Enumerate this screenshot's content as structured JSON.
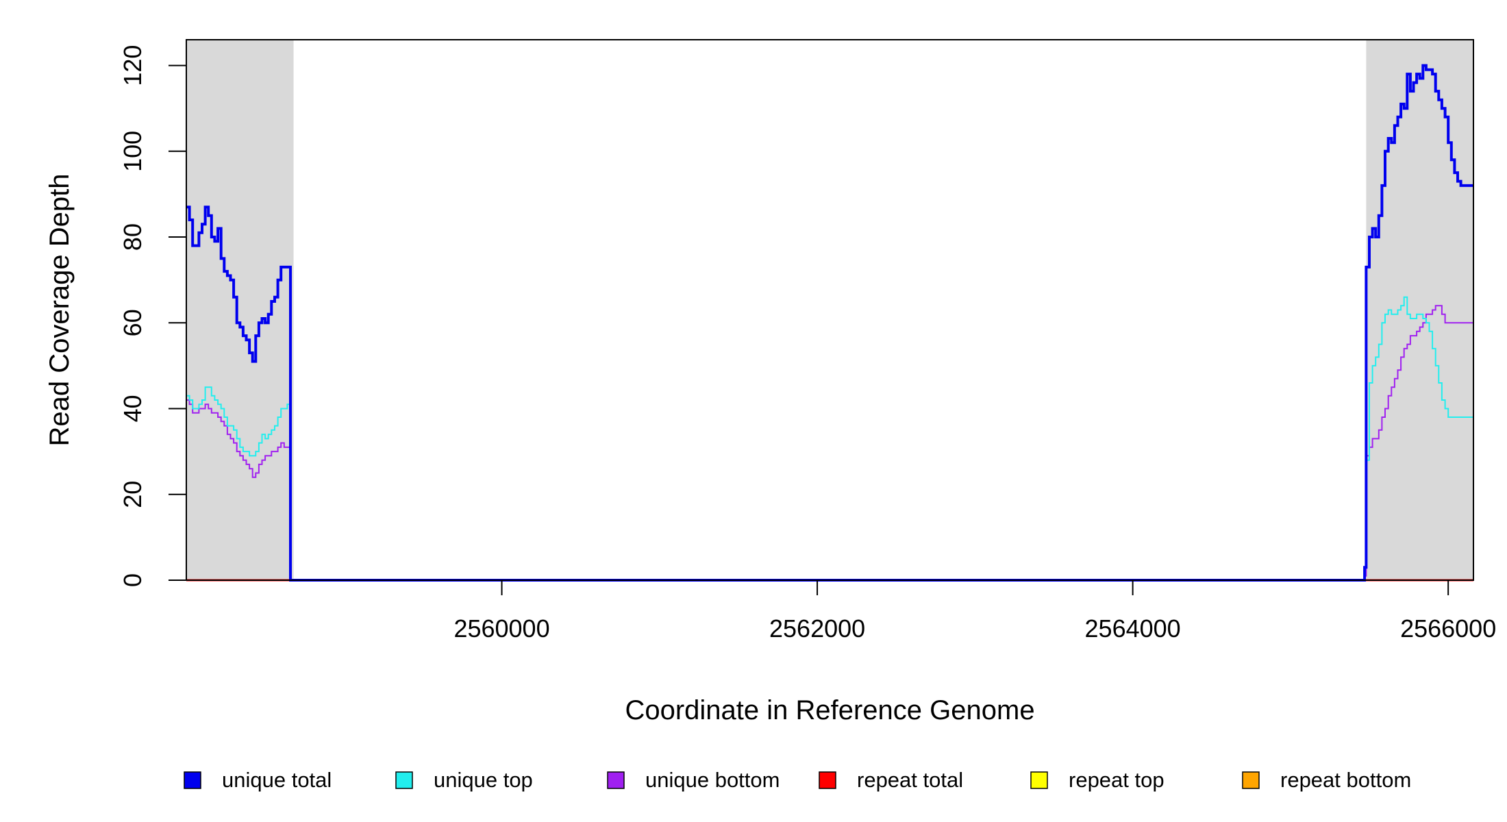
{
  "chart_data": {
    "type": "line",
    "title": "",
    "xlabel": "Coordinate in Reference Genome",
    "ylabel": "Read Coverage Depth",
    "xlim": [
      2558000,
      2566160
    ],
    "ylim": [
      0,
      126
    ],
    "xticks": [
      2560000,
      2562000,
      2564000,
      2566000
    ],
    "xtick_labels": [
      "2560000",
      "2562000",
      "2564000",
      "2566000"
    ],
    "yticks": [
      0,
      20,
      40,
      60,
      80,
      100,
      120
    ],
    "ytick_labels": [
      "0",
      "20",
      "40",
      "60",
      "80",
      "100",
      "120"
    ],
    "grid": false,
    "legend_position": "bottom",
    "shaded_regions": [
      {
        "x0": 2558000,
        "x1": 2558680,
        "color": "#d9d9d9"
      },
      {
        "x0": 2565480,
        "x1": 2566160,
        "color": "#d9d9d9"
      }
    ],
    "series": [
      {
        "name": "unique total",
        "color": "#0000ee",
        "x": [
          2558000,
          2558020,
          2558040,
          2558060,
          2558080,
          2558100,
          2558120,
          2558140,
          2558160,
          2558180,
          2558200,
          2558220,
          2558240,
          2558260,
          2558280,
          2558300,
          2558320,
          2558340,
          2558360,
          2558380,
          2558400,
          2558420,
          2558440,
          2558460,
          2558480,
          2558500,
          2558520,
          2558540,
          2558560,
          2558580,
          2558600,
          2558620,
          2558640,
          2558660,
          2558680,
          2558690,
          2558700,
          2559500,
          2560000,
          2561000,
          2562000,
          2563000,
          2564000,
          2565000,
          2565460,
          2565470,
          2565480,
          2565500,
          2565520,
          2565540,
          2565560,
          2565580,
          2565600,
          2565620,
          2565640,
          2565660,
          2565680,
          2565700,
          2565720,
          2565740,
          2565760,
          2565780,
          2565800,
          2565820,
          2565840,
          2565860,
          2565880,
          2565900,
          2565920,
          2565940,
          2565960,
          2565980,
          2566000,
          2566020,
          2566040,
          2566060,
          2566080,
          2566100,
          2566120,
          2566140,
          2566160
        ],
        "y": [
          87,
          84,
          78,
          78,
          81,
          83,
          87,
          85,
          80,
          79,
          82,
          75,
          72,
          71,
          70,
          66,
          60,
          59,
          57,
          56,
          53,
          51,
          57,
          60,
          61,
          60,
          62,
          65,
          66,
          70,
          73,
          73,
          73,
          0,
          0,
          0,
          0,
          0,
          0,
          0,
          0,
          0,
          0,
          0,
          0,
          3,
          73,
          80,
          82,
          80,
          85,
          92,
          100,
          103,
          102,
          106,
          108,
          111,
          110,
          118,
          114,
          116,
          118,
          117,
          120,
          119,
          119,
          118,
          114,
          112,
          110,
          108,
          102,
          98,
          95,
          93,
          92,
          92,
          92,
          92,
          92
        ]
      },
      {
        "name": "unique top",
        "color": "#22eeee",
        "x": [
          2558000,
          2558020,
          2558040,
          2558060,
          2558080,
          2558100,
          2558120,
          2558140,
          2558160,
          2558180,
          2558200,
          2558220,
          2558240,
          2558260,
          2558280,
          2558300,
          2558320,
          2558340,
          2558360,
          2558380,
          2558400,
          2558420,
          2558440,
          2558460,
          2558480,
          2558500,
          2558520,
          2558540,
          2558560,
          2558580,
          2558600,
          2558620,
          2558640,
          2558660,
          2558680,
          2558690,
          2558700,
          2559500,
          2560000,
          2561000,
          2562000,
          2563000,
          2564000,
          2565000,
          2565460,
          2565470,
          2565480,
          2565500,
          2565520,
          2565540,
          2565560,
          2565580,
          2565600,
          2565620,
          2565640,
          2565660,
          2565680,
          2565700,
          2565720,
          2565740,
          2565760,
          2565780,
          2565800,
          2565820,
          2565840,
          2565860,
          2565880,
          2565900,
          2565920,
          2565940,
          2565960,
          2565980,
          2566000,
          2566020,
          2566040,
          2566060,
          2566080,
          2566100,
          2566120,
          2566140,
          2566160
        ],
        "y": [
          43,
          42,
          40,
          40,
          41,
          42,
          45,
          45,
          43,
          42,
          41,
          40,
          38,
          36,
          36,
          35,
          33,
          31,
          30,
          30,
          29,
          29,
          30,
          32,
          34,
          33,
          34,
          35,
          36,
          38,
          40,
          40,
          41,
          0,
          0,
          0,
          0,
          0,
          0,
          0,
          0,
          0,
          0,
          0,
          0,
          3,
          28,
          46,
          50,
          52,
          55,
          60,
          62,
          63,
          62,
          62,
          63,
          64,
          66,
          62,
          61,
          61,
          62,
          62,
          61,
          60,
          58,
          54,
          50,
          46,
          42,
          40,
          38,
          38,
          38,
          38,
          38,
          38,
          38,
          38,
          38
        ]
      },
      {
        "name": "unique bottom",
        "color": "#a020f0",
        "x": [
          2558000,
          2558020,
          2558040,
          2558060,
          2558080,
          2558100,
          2558120,
          2558140,
          2558160,
          2558180,
          2558200,
          2558220,
          2558240,
          2558260,
          2558280,
          2558300,
          2558320,
          2558340,
          2558360,
          2558380,
          2558400,
          2558420,
          2558440,
          2558460,
          2558480,
          2558500,
          2558520,
          2558540,
          2558560,
          2558580,
          2558600,
          2558620,
          2558640,
          2558660,
          2558680,
          2558690,
          2558700,
          2559500,
          2560000,
          2561000,
          2562000,
          2563000,
          2564000,
          2565000,
          2565460,
          2565470,
          2565480,
          2565500,
          2565520,
          2565540,
          2565560,
          2565580,
          2565600,
          2565620,
          2565640,
          2565660,
          2565680,
          2565700,
          2565720,
          2565740,
          2565760,
          2565780,
          2565800,
          2565820,
          2565840,
          2565860,
          2565880,
          2565900,
          2565920,
          2565940,
          2565960,
          2565980,
          2566000,
          2566020,
          2566040,
          2566060,
          2566080,
          2566100,
          2566120,
          2566140,
          2566160
        ],
        "y": [
          42,
          41,
          39,
          39,
          40,
          40,
          41,
          40,
          39,
          39,
          38,
          37,
          36,
          34,
          33,
          32,
          30,
          29,
          28,
          27,
          26,
          24,
          25,
          27,
          28,
          29,
          29,
          30,
          30,
          31,
          32,
          31,
          31,
          0,
          0,
          0,
          0,
          0,
          0,
          0,
          0,
          0,
          0,
          0,
          0,
          1,
          29,
          31,
          33,
          33,
          35,
          38,
          40,
          43,
          45,
          47,
          49,
          52,
          54,
          55,
          57,
          57,
          58,
          59,
          60,
          62,
          62,
          63,
          64,
          64,
          62,
          60,
          60,
          60,
          60,
          60,
          60,
          60,
          60,
          60,
          60
        ]
      },
      {
        "name": "repeat total",
        "color": "#ff0000",
        "x": [
          2558000,
          2566160
        ],
        "y": [
          0,
          0
        ]
      },
      {
        "name": "repeat top",
        "color": "#ffff00",
        "x": [
          2558000,
          2566160
        ],
        "y": [
          0,
          0
        ]
      },
      {
        "name": "repeat bottom",
        "color": "#ffa500",
        "x": [
          2558000,
          2566160
        ],
        "y": [
          0,
          0
        ]
      }
    ]
  }
}
